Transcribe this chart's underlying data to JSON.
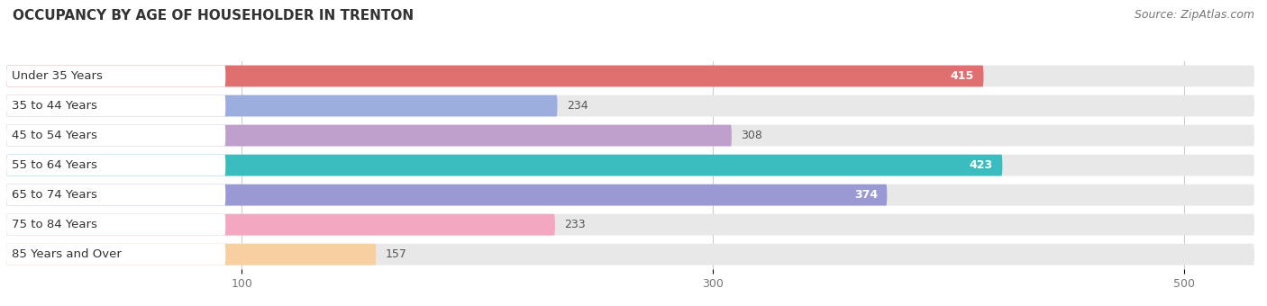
{
  "title": "OCCUPANCY BY AGE OF HOUSEHOLDER IN TRENTON",
  "source": "Source: ZipAtlas.com",
  "categories": [
    "Under 35 Years",
    "35 to 44 Years",
    "45 to 54 Years",
    "55 to 64 Years",
    "65 to 74 Years",
    "75 to 84 Years",
    "85 Years and Over"
  ],
  "values": [
    415,
    234,
    308,
    423,
    374,
    233,
    157
  ],
  "bar_colors": [
    "#E07070",
    "#9BAEDD",
    "#BF9FCC",
    "#3BBCBE",
    "#9B99D4",
    "#F4A7C0",
    "#F7CFA0"
  ],
  "value_colors": [
    "#ffffff",
    "#666666",
    "#666666",
    "#ffffff",
    "#ffffff",
    "#666666",
    "#666666"
  ],
  "xlim": [
    0,
    530
  ],
  "xticks": [
    100,
    300,
    500
  ],
  "background_color": "#ffffff",
  "bar_bg_color": "#e8e8e8",
  "title_fontsize": 11,
  "source_fontsize": 9,
  "label_fontsize": 9.5,
  "value_fontsize": 9
}
